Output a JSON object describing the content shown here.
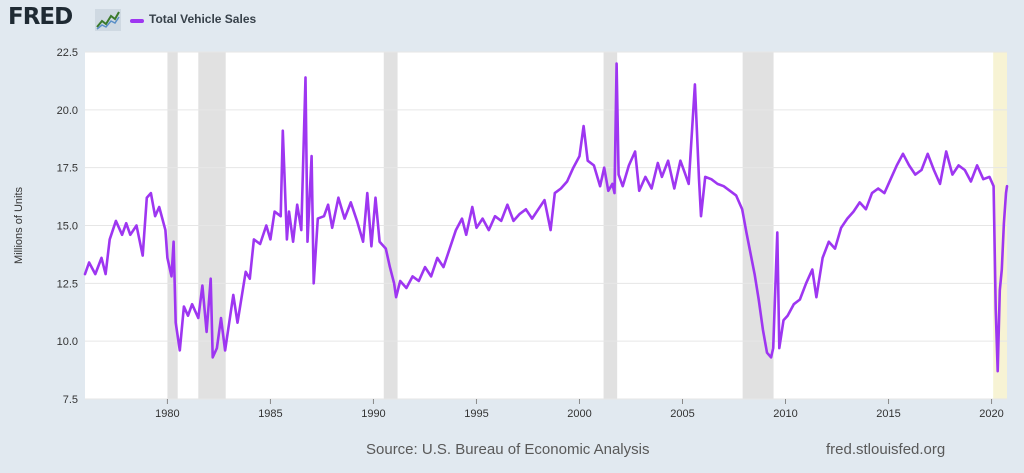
{
  "header": {
    "logo_text": "FRED",
    "logo_icon": "line-chart-icon",
    "series_label": "Total Vehicle Sales"
  },
  "footer": {
    "source": "Source: U.S. Bureau of Economic Analysis",
    "link": "fred.stlouisfed.org"
  },
  "colors": {
    "series": "#9e36f1",
    "recession": "#e1e1e1",
    "projection": "#f7f3d4",
    "plot_bg": "#ffffff",
    "page_bg": "#e1e9f0"
  },
  "chart_data": {
    "type": "line",
    "title": "",
    "xlabel": "",
    "ylabel": "Millions of Units",
    "xlim": [
      1976.0,
      2020.75
    ],
    "ylim": [
      7.5,
      22.5
    ],
    "y_ticks": [
      "7.5",
      "10.0",
      "12.5",
      "15.0",
      "17.5",
      "20.0",
      "22.5"
    ],
    "x_ticks": [
      "1980",
      "1985",
      "1990",
      "1995",
      "2000",
      "2005",
      "2010",
      "2015",
      "2020"
    ],
    "grid": "horizontal",
    "series": [
      {
        "name": "Total Vehicle Sales",
        "points": [
          [
            1976.0,
            12.9
          ],
          [
            1976.2,
            13.4
          ],
          [
            1976.5,
            12.9
          ],
          [
            1976.8,
            13.6
          ],
          [
            1977.0,
            12.9
          ],
          [
            1977.2,
            14.4
          ],
          [
            1977.5,
            15.2
          ],
          [
            1977.8,
            14.6
          ],
          [
            1978.0,
            15.1
          ],
          [
            1978.2,
            14.6
          ],
          [
            1978.5,
            15.0
          ],
          [
            1978.8,
            13.7
          ],
          [
            1979.0,
            16.2
          ],
          [
            1979.2,
            16.4
          ],
          [
            1979.4,
            15.4
          ],
          [
            1979.6,
            15.8
          ],
          [
            1979.9,
            14.8
          ],
          [
            1980.0,
            13.6
          ],
          [
            1980.2,
            12.8
          ],
          [
            1980.3,
            14.3
          ],
          [
            1980.4,
            10.8
          ],
          [
            1980.6,
            9.6
          ],
          [
            1980.8,
            11.5
          ],
          [
            1981.0,
            11.1
          ],
          [
            1981.2,
            11.6
          ],
          [
            1981.5,
            11.0
          ],
          [
            1981.7,
            12.4
          ],
          [
            1981.9,
            10.4
          ],
          [
            1982.1,
            12.7
          ],
          [
            1982.2,
            9.3
          ],
          [
            1982.4,
            9.7
          ],
          [
            1982.6,
            11.0
          ],
          [
            1982.8,
            9.6
          ],
          [
            1983.0,
            10.8
          ],
          [
            1983.2,
            12.0
          ],
          [
            1983.4,
            10.8
          ],
          [
            1983.8,
            13.0
          ],
          [
            1984.0,
            12.7
          ],
          [
            1984.2,
            14.4
          ],
          [
            1984.5,
            14.2
          ],
          [
            1984.8,
            15.0
          ],
          [
            1985.0,
            14.4
          ],
          [
            1985.2,
            15.6
          ],
          [
            1985.5,
            15.4
          ],
          [
            1985.6,
            19.1
          ],
          [
            1985.8,
            14.4
          ],
          [
            1985.9,
            15.6
          ],
          [
            1986.1,
            14.3
          ],
          [
            1986.3,
            15.9
          ],
          [
            1986.5,
            14.8
          ],
          [
            1986.7,
            21.4
          ],
          [
            1986.8,
            14.3
          ],
          [
            1987.0,
            18.0
          ],
          [
            1987.1,
            12.5
          ],
          [
            1987.3,
            15.3
          ],
          [
            1987.6,
            15.4
          ],
          [
            1987.8,
            15.9
          ],
          [
            1988.0,
            14.9
          ],
          [
            1988.3,
            16.2
          ],
          [
            1988.6,
            15.3
          ],
          [
            1988.9,
            16.0
          ],
          [
            1989.2,
            15.2
          ],
          [
            1989.5,
            14.3
          ],
          [
            1989.7,
            16.4
          ],
          [
            1989.9,
            14.1
          ],
          [
            1990.1,
            16.2
          ],
          [
            1990.3,
            14.3
          ],
          [
            1990.6,
            14.0
          ],
          [
            1990.8,
            13.2
          ],
          [
            1991.0,
            12.5
          ],
          [
            1991.1,
            11.9
          ],
          [
            1991.3,
            12.6
          ],
          [
            1991.6,
            12.3
          ],
          [
            1991.9,
            12.8
          ],
          [
            1992.2,
            12.6
          ],
          [
            1992.5,
            13.2
          ],
          [
            1992.8,
            12.8
          ],
          [
            1993.1,
            13.6
          ],
          [
            1993.4,
            13.2
          ],
          [
            1993.7,
            14.0
          ],
          [
            1994.0,
            14.8
          ],
          [
            1994.3,
            15.3
          ],
          [
            1994.5,
            14.6
          ],
          [
            1994.8,
            15.8
          ],
          [
            1995.0,
            14.9
          ],
          [
            1995.3,
            15.3
          ],
          [
            1995.6,
            14.8
          ],
          [
            1995.9,
            15.4
          ],
          [
            1996.2,
            15.2
          ],
          [
            1996.5,
            15.9
          ],
          [
            1996.8,
            15.2
          ],
          [
            1997.1,
            15.5
          ],
          [
            1997.4,
            15.7
          ],
          [
            1997.7,
            15.3
          ],
          [
            1998.0,
            15.7
          ],
          [
            1998.3,
            16.1
          ],
          [
            1998.6,
            14.8
          ],
          [
            1998.8,
            16.4
          ],
          [
            1999.1,
            16.6
          ],
          [
            1999.4,
            16.9
          ],
          [
            1999.7,
            17.5
          ],
          [
            2000.0,
            18.0
          ],
          [
            2000.2,
            19.3
          ],
          [
            2000.4,
            17.8
          ],
          [
            2000.7,
            17.6
          ],
          [
            2001.0,
            16.7
          ],
          [
            2001.2,
            17.5
          ],
          [
            2001.4,
            16.5
          ],
          [
            2001.6,
            16.8
          ],
          [
            2001.7,
            16.4
          ],
          [
            2001.8,
            22.0
          ],
          [
            2001.9,
            17.2
          ],
          [
            2002.1,
            16.7
          ],
          [
            2002.4,
            17.6
          ],
          [
            2002.7,
            18.2
          ],
          [
            2002.9,
            16.5
          ],
          [
            2003.2,
            17.1
          ],
          [
            2003.5,
            16.6
          ],
          [
            2003.8,
            17.7
          ],
          [
            2004.0,
            17.1
          ],
          [
            2004.3,
            17.8
          ],
          [
            2004.6,
            16.6
          ],
          [
            2004.9,
            17.8
          ],
          [
            2005.1,
            17.3
          ],
          [
            2005.3,
            16.8
          ],
          [
            2005.6,
            21.1
          ],
          [
            2005.8,
            17.0
          ],
          [
            2005.9,
            15.4
          ],
          [
            2006.1,
            17.1
          ],
          [
            2006.4,
            17.0
          ],
          [
            2006.7,
            16.8
          ],
          [
            2007.0,
            16.7
          ],
          [
            2007.3,
            16.5
          ],
          [
            2007.6,
            16.3
          ],
          [
            2007.9,
            15.7
          ],
          [
            2008.1,
            14.7
          ],
          [
            2008.3,
            13.8
          ],
          [
            2008.5,
            12.9
          ],
          [
            2008.7,
            11.8
          ],
          [
            2008.9,
            10.5
          ],
          [
            2009.1,
            9.5
          ],
          [
            2009.3,
            9.3
          ],
          [
            2009.4,
            9.7
          ],
          [
            2009.6,
            14.7
          ],
          [
            2009.7,
            9.7
          ],
          [
            2009.9,
            10.9
          ],
          [
            2010.1,
            11.1
          ],
          [
            2010.4,
            11.6
          ],
          [
            2010.7,
            11.8
          ],
          [
            2011.0,
            12.5
          ],
          [
            2011.3,
            13.1
          ],
          [
            2011.5,
            11.9
          ],
          [
            2011.8,
            13.6
          ],
          [
            2012.1,
            14.3
          ],
          [
            2012.4,
            14.0
          ],
          [
            2012.7,
            14.9
          ],
          [
            2013.0,
            15.3
          ],
          [
            2013.3,
            15.6
          ],
          [
            2013.6,
            16.0
          ],
          [
            2013.9,
            15.7
          ],
          [
            2014.2,
            16.4
          ],
          [
            2014.5,
            16.6
          ],
          [
            2014.8,
            16.4
          ],
          [
            2015.1,
            17.0
          ],
          [
            2015.4,
            17.6
          ],
          [
            2015.7,
            18.1
          ],
          [
            2016.0,
            17.6
          ],
          [
            2016.3,
            17.2
          ],
          [
            2016.6,
            17.4
          ],
          [
            2016.9,
            18.1
          ],
          [
            2017.2,
            17.4
          ],
          [
            2017.5,
            16.8
          ],
          [
            2017.8,
            18.2
          ],
          [
            2018.1,
            17.2
          ],
          [
            2018.4,
            17.6
          ],
          [
            2018.7,
            17.4
          ],
          [
            2019.0,
            16.9
          ],
          [
            2019.3,
            17.6
          ],
          [
            2019.6,
            17.0
          ],
          [
            2019.9,
            17.1
          ],
          [
            2020.1,
            16.7
          ],
          [
            2020.2,
            11.4
          ],
          [
            2020.3,
            8.7
          ],
          [
            2020.4,
            12.2
          ],
          [
            2020.5,
            13.1
          ],
          [
            2020.6,
            15.1
          ],
          [
            2020.7,
            16.4
          ],
          [
            2020.75,
            16.7
          ]
        ]
      }
    ],
    "recessions": [
      [
        1980.0,
        1980.5
      ],
      [
        1981.5,
        1982.83
      ],
      [
        1990.5,
        1991.17
      ],
      [
        2001.17,
        2001.83
      ],
      [
        2007.92,
        2009.42
      ],
      [
        2020.08,
        2020.75
      ]
    ]
  }
}
